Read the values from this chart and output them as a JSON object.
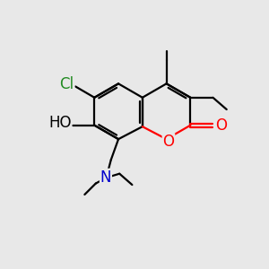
{
  "bg_color": "#e8e8e8",
  "bond_color": "#000000",
  "bond_width": 1.6,
  "atom_colors": {
    "O": "#ff0000",
    "N": "#0000cc",
    "Cl": "#228b22",
    "C": "#000000"
  },
  "font_size": 12
}
